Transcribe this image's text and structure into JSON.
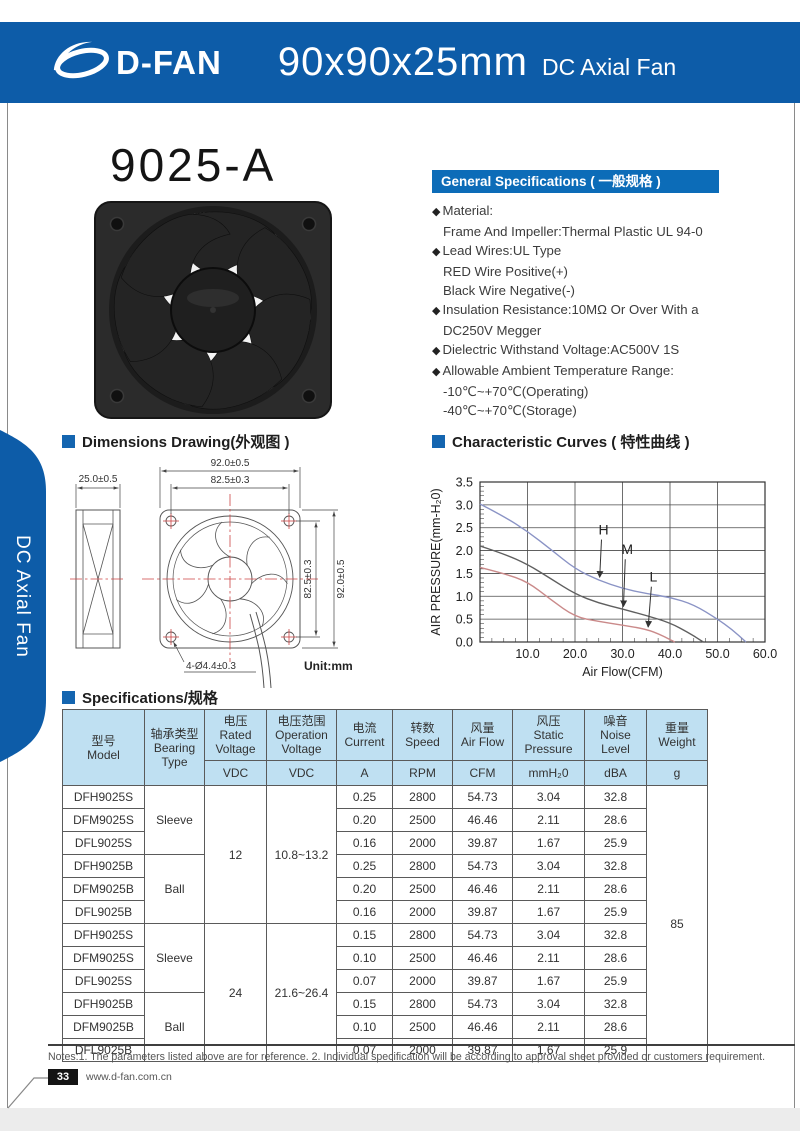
{
  "header": {
    "brand": "D-FAN",
    "size": "90x90x25mm",
    "product": "DC Axial Fan"
  },
  "side_tab": {
    "label": "DC Axial Fan"
  },
  "model_title": "9025-A",
  "sections": {
    "general": "General Specifications ( 一般规格 )",
    "dimensions": "Dimensions Drawing(外观图 )",
    "curves": "Characteristic Curves ( 特性曲线 )",
    "specs": "Specifications/规格"
  },
  "general_specs": {
    "items": [
      {
        "bullet": true,
        "text": "Material:"
      },
      {
        "bullet": false,
        "text": "Frame And Impeller:Thermal Plastic UL 94-0"
      },
      {
        "bullet": true,
        "text": "Lead Wires:UL Type"
      },
      {
        "bullet": false,
        "text": "RED Wire Positive(+)"
      },
      {
        "bullet": false,
        "text": "Black Wire Negative(-)"
      },
      {
        "bullet": true,
        "text": "Insulation Resistance:10MΩ Or Over With a"
      },
      {
        "bullet": false,
        "text": "DC250V Megger"
      },
      {
        "bullet": true,
        "text": "Dielectric Withstand Voltage:AC500V 1S"
      },
      {
        "bullet": true,
        "text": "Allowable Ambient Temperature Range:"
      },
      {
        "bullet": false,
        "text": "-10℃~+70℃(Operating)"
      },
      {
        "bullet": false,
        "text": "-40℃~+70℃(Storage)"
      }
    ]
  },
  "dim_drawing": {
    "side_width": "25.0±0.5",
    "outer": "92.0±0.5",
    "holes": "82.5±0.3",
    "holes_v": "82.5±0.3",
    "outer_v": "92.0±0.5",
    "mount": "4-Ø4.4±0.3",
    "unit": "Unit:mm"
  },
  "chart_data": {
    "type": "line",
    "title": "Characteristic Curves ( 特性曲线 )",
    "xlabel": "Air  Flow(CFM)",
    "ylabel": "AIR PRESSURE(mm-H₂0)",
    "xlim": [
      0,
      60
    ],
    "ylim": [
      0,
      3.5
    ],
    "x_ticks": [
      10,
      20,
      30,
      40,
      50,
      60
    ],
    "y_ticks": [
      0,
      0.5,
      1,
      1.5,
      2,
      2.5,
      3,
      3.5
    ],
    "grid": true,
    "series": [
      {
        "name": "H",
        "color": "#8a93c5",
        "points": [
          [
            0,
            3.02
          ],
          [
            5,
            2.75
          ],
          [
            10,
            2.42
          ],
          [
            15,
            2.02
          ],
          [
            20,
            1.6
          ],
          [
            25,
            1.35
          ],
          [
            30,
            1.17
          ],
          [
            35,
            1.06
          ],
          [
            40,
            0.98
          ],
          [
            45,
            0.82
          ],
          [
            50,
            0.5
          ],
          [
            53,
            0.28
          ],
          [
            56,
            0
          ]
        ]
      },
      {
        "name": "M",
        "color": "#5f5f5f",
        "points": [
          [
            0,
            2.1
          ],
          [
            5,
            1.93
          ],
          [
            10,
            1.7
          ],
          [
            15,
            1.38
          ],
          [
            20,
            1.05
          ],
          [
            25,
            0.85
          ],
          [
            30,
            0.72
          ],
          [
            35,
            0.58
          ],
          [
            40,
            0.42
          ],
          [
            44,
            0.2
          ],
          [
            47,
            0
          ]
        ]
      },
      {
        "name": "L",
        "color": "#ca8a8a",
        "points": [
          [
            0,
            1.63
          ],
          [
            5,
            1.5
          ],
          [
            10,
            1.32
          ],
          [
            15,
            0.92
          ],
          [
            20,
            0.55
          ],
          [
            25,
            0.45
          ],
          [
            30,
            0.37
          ],
          [
            35,
            0.28
          ],
          [
            38,
            0.16
          ],
          [
            41,
            0
          ]
        ]
      }
    ],
    "labels": [
      {
        "text": "H",
        "x": 26,
        "y": 2.35,
        "ax": 25.2,
        "ay": 1.42
      },
      {
        "text": "M",
        "x": 31,
        "y": 1.92,
        "ax": 30.2,
        "ay": 0.78
      },
      {
        "text": "L",
        "x": 36.5,
        "y": 1.32,
        "ax": 35.4,
        "ay": 0.33
      }
    ]
  },
  "table": {
    "headers": [
      {
        "zh": "型号",
        "en": "Model"
      },
      {
        "zh": "轴承类型",
        "en": "Bearing Type"
      },
      {
        "zh": "电压",
        "en": "Rated Voltage",
        "unit": "VDC"
      },
      {
        "zh": "电压范围",
        "en": "Operation Voltage",
        "unit": "VDC"
      },
      {
        "zh": "电流",
        "en": "Current",
        "unit": "A"
      },
      {
        "zh": "转数",
        "en": "Speed",
        "unit": "RPM"
      },
      {
        "zh": "风量",
        "en": "Air Flow",
        "unit": "CFM"
      },
      {
        "zh": "风压",
        "en": "Static Pressure",
        "unit": "mmH₂0"
      },
      {
        "zh": "噪音",
        "en": "Noise Level",
        "unit": "dBA"
      },
      {
        "zh": "重量",
        "en": "Weight",
        "unit": "g"
      }
    ],
    "bearing_groups": [
      {
        "label": "Sleeve",
        "span": 3
      },
      {
        "label": "Ball",
        "span": 3
      },
      {
        "label": "Sleeve",
        "span": 3
      },
      {
        "label": "Ball",
        "span": 3
      }
    ],
    "voltage_groups": [
      {
        "rated": "12",
        "operation": "10.8~13.2",
        "span": 6
      },
      {
        "rated": "24",
        "operation": "21.6~26.4",
        "span": 6
      }
    ],
    "weight": {
      "value": "85",
      "span": 12
    },
    "rows": [
      {
        "model": "DFH9025S",
        "current": "0.25",
        "speed": "2800",
        "airflow": "54.73",
        "pressure": "3.04",
        "noise": "32.8"
      },
      {
        "model": "DFM9025S",
        "current": "0.20",
        "speed": "2500",
        "airflow": "46.46",
        "pressure": "2.11",
        "noise": "28.6"
      },
      {
        "model": "DFL9025S",
        "current": "0.16",
        "speed": "2000",
        "airflow": "39.87",
        "pressure": "1.67",
        "noise": "25.9"
      },
      {
        "model": "DFH9025B",
        "current": "0.25",
        "speed": "2800",
        "airflow": "54.73",
        "pressure": "3.04",
        "noise": "32.8"
      },
      {
        "model": "DFM9025B",
        "current": "0.20",
        "speed": "2500",
        "airflow": "46.46",
        "pressure": "2.11",
        "noise": "28.6"
      },
      {
        "model": "DFL9025B",
        "current": "0.16",
        "speed": "2000",
        "airflow": "39.87",
        "pressure": "1.67",
        "noise": "25.9"
      },
      {
        "model": "DFH9025S",
        "current": "0.15",
        "speed": "2800",
        "airflow": "54.73",
        "pressure": "3.04",
        "noise": "32.8"
      },
      {
        "model": "DFM9025S",
        "current": "0.10",
        "speed": "2500",
        "airflow": "46.46",
        "pressure": "2.11",
        "noise": "28.6"
      },
      {
        "model": "DFL9025S",
        "current": "0.07",
        "speed": "2000",
        "airflow": "39.87",
        "pressure": "1.67",
        "noise": "25.9"
      },
      {
        "model": "DFH9025B",
        "current": "0.15",
        "speed": "2800",
        "airflow": "54.73",
        "pressure": "3.04",
        "noise": "32.8"
      },
      {
        "model": "DFM9025B",
        "current": "0.10",
        "speed": "2500",
        "airflow": "46.46",
        "pressure": "2.11",
        "noise": "28.6"
      },
      {
        "model": "DFL9025B",
        "current": "0.07",
        "speed": "2000",
        "airflow": "39.87",
        "pressure": "1.67",
        "noise": "25.9"
      }
    ]
  },
  "footer": {
    "notes": "Notes:1. The parameters listed above are for reference.   2. Individual specification will be according to approval sheet provided or customers requirement.",
    "page": "33",
    "website": "www.d-fan.com.cn"
  },
  "colors": {
    "topbar_blue": "#0d5ca8",
    "section_bar_blue": "#0c6cb8",
    "bullet_blue": "#1465b0",
    "table_header_bg": "#bfe0f2",
    "drawing_red": "#cc4444"
  }
}
